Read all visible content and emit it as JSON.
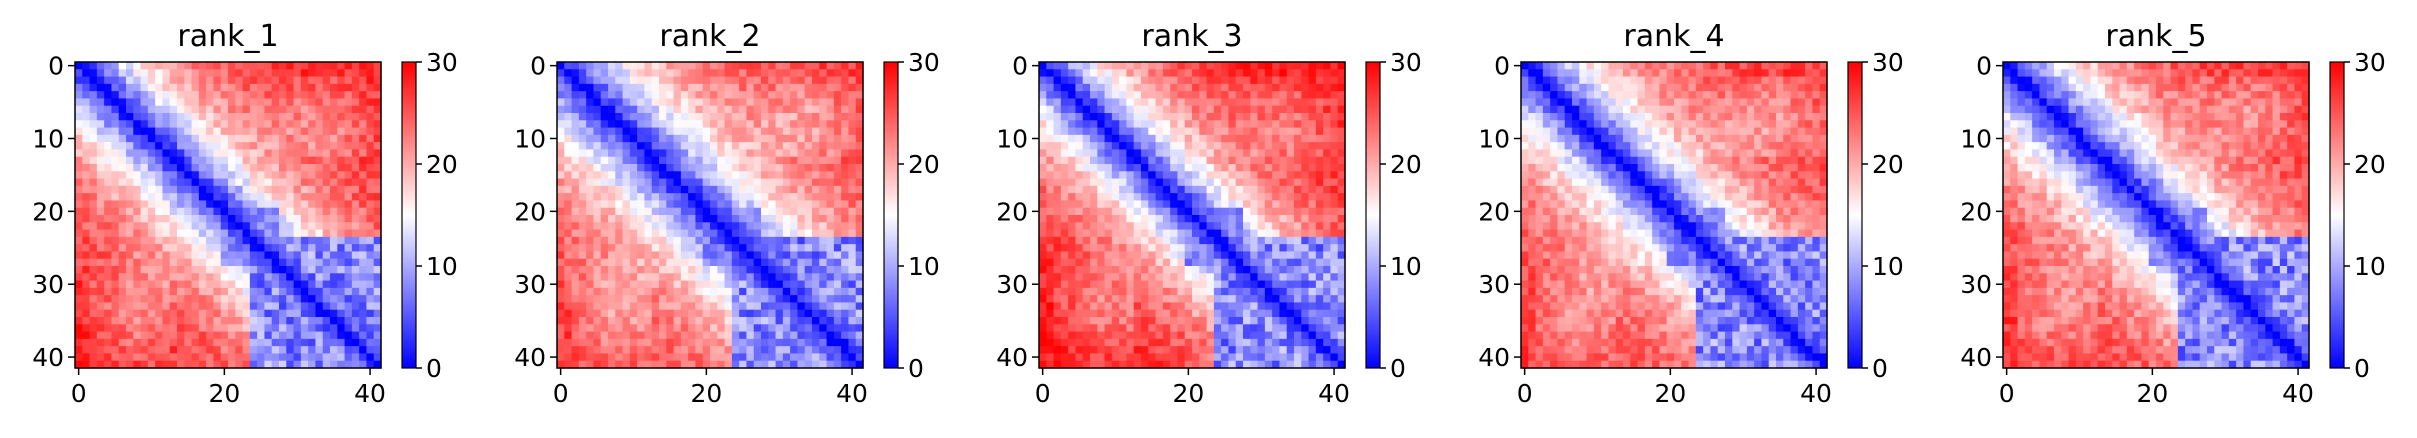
{
  "chart_data": [
    {
      "type": "heatmap",
      "title": "rank_1",
      "rows": 42,
      "cols": 42,
      "x_ticks": [
        0,
        20,
        40
      ],
      "y_ticks": [
        0,
        10,
        20,
        30,
        40
      ],
      "colorbar_ticks": [
        0,
        10,
        20,
        30
      ],
      "value_range": [
        0,
        30
      ],
      "colormap": "bwr",
      "diagonal_value": 0,
      "far_value": 28,
      "band_width": 10,
      "hole_center": [
        22,
        8
      ],
      "hole_radius": 5
    },
    {
      "type": "heatmap",
      "title": "rank_2",
      "rows": 42,
      "cols": 42,
      "x_ticks": [
        0,
        20,
        40
      ],
      "y_ticks": [
        0,
        10,
        20,
        30,
        40
      ],
      "colorbar_ticks": [
        0,
        10,
        20,
        30
      ],
      "value_range": [
        0,
        30
      ],
      "colormap": "bwr",
      "diagonal_value": 0,
      "far_value": 27,
      "band_width": 11,
      "hole_center": [
        22,
        7
      ],
      "hole_radius": 4
    },
    {
      "type": "heatmap",
      "title": "rank_3",
      "rows": 42,
      "cols": 42,
      "x_ticks": [
        0,
        20,
        40
      ],
      "y_ticks": [
        0,
        10,
        20,
        30,
        40
      ],
      "colorbar_ticks": [
        0,
        10,
        20,
        30
      ],
      "value_range": [
        0,
        30
      ],
      "colormap": "bwr",
      "diagonal_value": 0,
      "far_value": 29,
      "band_width": 10,
      "hole_center": [
        22,
        8
      ],
      "hole_radius": 5
    },
    {
      "type": "heatmap",
      "title": "rank_4",
      "rows": 42,
      "cols": 42,
      "x_ticks": [
        0,
        20,
        40
      ],
      "y_ticks": [
        0,
        10,
        20,
        30,
        40
      ],
      "colorbar_ticks": [
        0,
        10,
        20,
        30
      ],
      "value_range": [
        0,
        30
      ],
      "colormap": "bwr",
      "diagonal_value": 0,
      "far_value": 27,
      "band_width": 10,
      "hole_center": [
        23,
        7
      ],
      "hole_radius": 4
    },
    {
      "type": "heatmap",
      "title": "rank_5",
      "rows": 42,
      "cols": 42,
      "x_ticks": [
        0,
        20,
        40
      ],
      "y_ticks": [
        0,
        10,
        20,
        30,
        40
      ],
      "colorbar_ticks": [
        0,
        10,
        20,
        30
      ],
      "value_range": [
        0,
        30
      ],
      "colormap": "bwr",
      "diagonal_value": 0,
      "far_value": 28,
      "band_width": 11,
      "hole_center": [
        24,
        6
      ],
      "hole_radius": 3
    }
  ]
}
